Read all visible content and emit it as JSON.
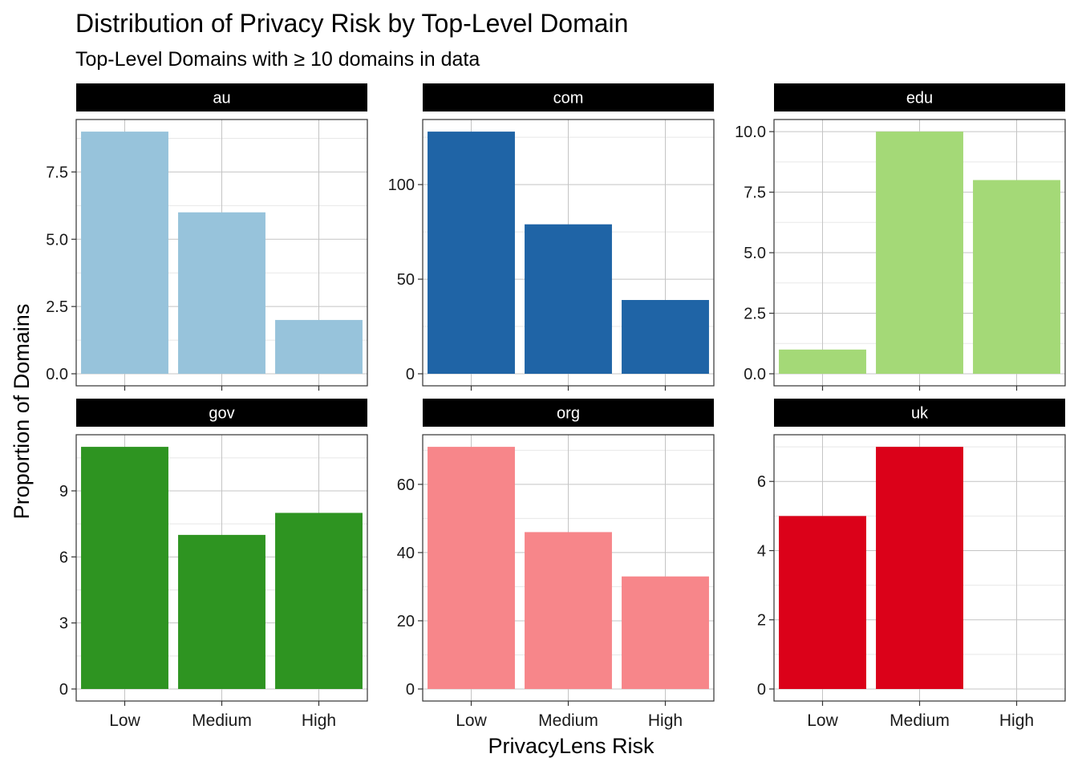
{
  "chart_data": {
    "type": "bar",
    "title": "Distribution of Privacy Risk by Top-Level Domain",
    "subtitle": "Top-Level Domains with ≥ 10 domains in data",
    "xlabel": "PrivacyLens Risk",
    "ylabel": "Proportion of Domains",
    "categories": [
      "Low",
      "Medium",
      "High"
    ],
    "grid": true,
    "legend": "none",
    "facets": [
      {
        "name": "au",
        "color": "#97c3db",
        "values": [
          9,
          6,
          2
        ],
        "ylim": [
          0,
          9.45
        ],
        "ticks": [
          0,
          2.5,
          5,
          7.5
        ],
        "tick_labels": [
          "0.0",
          "2.5",
          "5.0",
          "7.5"
        ]
      },
      {
        "name": "com",
        "color": "#1f64a6",
        "values": [
          128,
          79,
          39
        ],
        "ylim": [
          0,
          134.4
        ],
        "ticks": [
          0,
          50,
          100
        ],
        "tick_labels": [
          "0",
          "50",
          "100"
        ]
      },
      {
        "name": "edu",
        "color": "#a4d977",
        "values": [
          1,
          10,
          8
        ],
        "ylim": [
          0,
          10.5
        ],
        "ticks": [
          0,
          2.5,
          5,
          7.5,
          10
        ],
        "tick_labels": [
          "0.0",
          "2.5",
          "5.0",
          "7.5",
          "10.0"
        ]
      },
      {
        "name": "gov",
        "color": "#2e9421",
        "values": [
          11,
          7,
          8
        ],
        "ylim": [
          0,
          11.55
        ],
        "ticks": [
          0,
          3,
          6,
          9
        ],
        "tick_labels": [
          "0",
          "3",
          "6",
          "9"
        ]
      },
      {
        "name": "org",
        "color": "#f7868a",
        "values": [
          71,
          46,
          33
        ],
        "ylim": [
          0,
          74.55
        ],
        "ticks": [
          0,
          20,
          40,
          60
        ],
        "tick_labels": [
          "0",
          "20",
          "40",
          "60"
        ]
      },
      {
        "name": "uk",
        "color": "#db0119",
        "values": [
          5,
          7,
          0
        ],
        "ylim": [
          0,
          7.35
        ],
        "ticks": [
          0,
          2,
          4,
          6
        ],
        "tick_labels": [
          "0",
          "2",
          "4",
          "6"
        ]
      }
    ]
  }
}
